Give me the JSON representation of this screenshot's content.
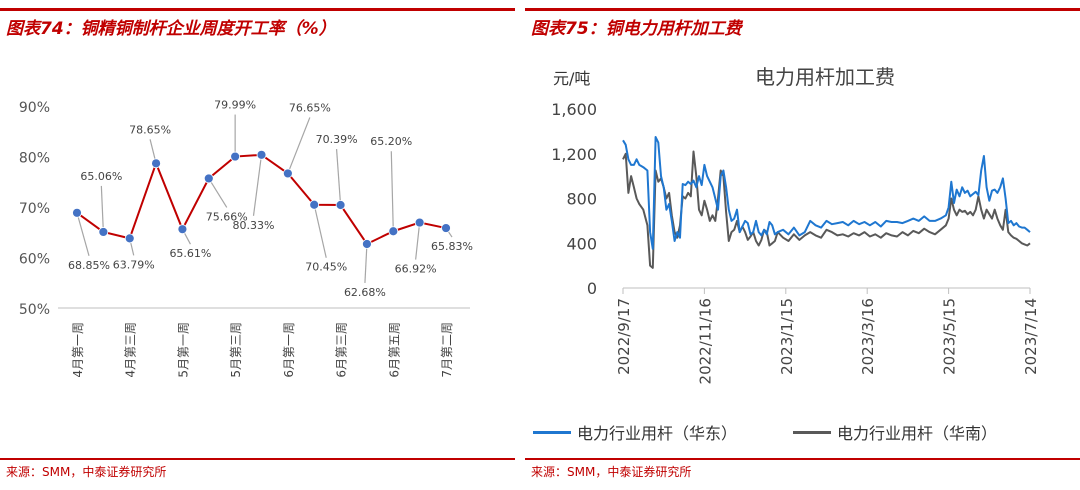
{
  "left_panel": {
    "figure_title": "图表74：铜精铜制杆企业周度开工率（%）",
    "source": "来源：SMM，中泰证券研究所"
  },
  "right_panel": {
    "figure_title": "图表75：铜电力用杆加工费",
    "source": "来源：SMM，中泰证券研究所"
  },
  "colors": {
    "accent": "#c00000",
    "line_red": "#c00000",
    "marker_blue": "#4472c4",
    "series_blue": "#1f77d0",
    "series_gray": "#595959"
  },
  "chart_data": [
    {
      "type": "line",
      "title": "",
      "ylim": [
        50,
        90
      ],
      "yticks": [
        "50%",
        "60%",
        "70%",
        "80%",
        "90%"
      ],
      "ytick_values": [
        50,
        60,
        70,
        80,
        90
      ],
      "x_labels": [
        "4月第一周",
        "4月第三周",
        "5月第一周",
        "5月第三周",
        "6月第一周",
        "6月第三周",
        "6月第五周",
        "7月第二周"
      ],
      "label_every": 2,
      "values": [
        68.85,
        65.06,
        63.79,
        78.65,
        65.61,
        75.66,
        79.99,
        80.33,
        76.65,
        70.45,
        70.39,
        62.68,
        65.2,
        66.92,
        65.83
      ],
      "data_labels": [
        "68.85%",
        "65.06%",
        "63.79%",
        "78.65%",
        "65.61%",
        "75.66%",
        "79.99%",
        "80.33%",
        "76.65%",
        "70.45%",
        "70.39%",
        "62.68%",
        "65.20%",
        "66.92%",
        "65.83%"
      ],
      "grid": false
    },
    {
      "type": "line",
      "title": "电力用杆加工费",
      "ylabel": "元/吨",
      "ylim": [
        0,
        1600
      ],
      "yticks": [
        "0",
        "400",
        "800",
        "1,200",
        "1,600"
      ],
      "ytick_values": [
        0,
        400,
        800,
        1200,
        1600
      ],
      "x_labels": [
        "2022/9/17",
        "2022/11/16",
        "2023/1/15",
        "2023/3/16",
        "2023/5/15",
        "2023/7/14"
      ],
      "x_positions": [
        0,
        60,
        120,
        180,
        240,
        300
      ],
      "legend_position": "bottom",
      "series": [
        {
          "name": "电力行业用杆（华东）",
          "x": [
            0,
            2,
            4,
            6,
            8,
            10,
            12,
            15,
            18,
            20,
            22,
            24,
            26,
            28,
            30,
            32,
            34,
            36,
            38,
            40,
            42,
            44,
            46,
            48,
            50,
            52,
            54,
            56,
            58,
            60,
            62,
            64,
            66,
            68,
            70,
            72,
            74,
            76,
            78,
            80,
            82,
            84,
            86,
            88,
            90,
            92,
            94,
            96,
            98,
            100,
            102,
            104,
            106,
            108,
            110,
            112,
            114,
            118,
            122,
            126,
            130,
            134,
            138,
            142,
            146,
            150,
            154,
            158,
            162,
            166,
            170,
            174,
            178,
            182,
            186,
            190,
            194,
            198,
            202,
            206,
            210,
            214,
            218,
            222,
            226,
            230,
            234,
            238,
            240,
            242,
            244,
            246,
            248,
            250,
            252,
            254,
            256,
            258,
            260,
            262,
            264,
            266,
            268,
            270,
            272,
            274,
            276,
            278,
            280,
            282,
            284,
            286,
            288,
            290,
            292,
            294,
            296,
            298,
            300
          ],
          "y": [
            1320,
            1280,
            1150,
            1100,
            1100,
            1150,
            1100,
            1080,
            1050,
            500,
            350,
            1350,
            1300,
            1000,
            900,
            700,
            750,
            600,
            420,
            500,
            450,
            930,
            920,
            950,
            930,
            960,
            900,
            1000,
            920,
            1100,
            1000,
            950,
            900,
            800,
            700,
            1000,
            1050,
            900,
            700,
            600,
            620,
            700,
            500,
            550,
            600,
            580,
            480,
            500,
            600,
            500,
            470,
            520,
            480,
            590,
            560,
            480,
            500,
            520,
            480,
            540,
            470,
            500,
            600,
            560,
            540,
            600,
            570,
            580,
            590,
            560,
            600,
            570,
            590,
            560,
            590,
            550,
            600,
            590,
            590,
            580,
            600,
            620,
            600,
            640,
            600,
            600,
            620,
            650,
            720,
            950,
            760,
            880,
            820,
            900,
            850,
            870,
            820,
            840,
            860,
            830,
            1050,
            1180,
            900,
            780,
            870,
            880,
            850,
            900,
            980,
            800,
            580,
            600,
            560,
            580,
            550,
            540,
            540,
            520,
            500
          ],
          "color": "#1f77d0"
        },
        {
          "name": "电力行业用杆（华南）",
          "x": [
            0,
            2,
            4,
            6,
            8,
            10,
            12,
            15,
            18,
            20,
            22,
            24,
            26,
            28,
            30,
            32,
            34,
            36,
            38,
            40,
            42,
            44,
            46,
            48,
            50,
            52,
            54,
            56,
            58,
            60,
            62,
            64,
            66,
            68,
            70,
            72,
            74,
            76,
            78,
            80,
            82,
            84,
            86,
            88,
            90,
            92,
            94,
            96,
            98,
            100,
            102,
            104,
            106,
            108,
            110,
            112,
            114,
            118,
            122,
            126,
            130,
            134,
            138,
            142,
            146,
            150,
            154,
            158,
            162,
            166,
            170,
            174,
            178,
            182,
            186,
            190,
            194,
            198,
            202,
            206,
            210,
            214,
            218,
            222,
            226,
            230,
            234,
            238,
            240,
            242,
            244,
            246,
            248,
            250,
            252,
            254,
            256,
            258,
            260,
            262,
            264,
            266,
            268,
            270,
            272,
            274,
            276,
            278,
            280,
            282,
            284,
            286,
            288,
            290,
            292,
            294,
            296,
            298,
            300
          ],
          "y": [
            1150,
            1200,
            850,
            1000,
            900,
            800,
            750,
            700,
            560,
            200,
            180,
            1050,
            950,
            980,
            900,
            800,
            850,
            650,
            500,
            450,
            560,
            820,
            800,
            850,
            820,
            1220,
            1000,
            700,
            650,
            780,
            700,
            600,
            650,
            600,
            800,
            1050,
            1000,
            680,
            420,
            500,
            520,
            600,
            500,
            550,
            500,
            430,
            460,
            500,
            420,
            380,
            430,
            520,
            500,
            380,
            400,
            420,
            500,
            450,
            420,
            480,
            430,
            470,
            500,
            470,
            450,
            520,
            500,
            470,
            480,
            460,
            490,
            470,
            500,
            460,
            480,
            450,
            490,
            470,
            460,
            500,
            470,
            510,
            490,
            530,
            500,
            480,
            520,
            560,
            620,
            800,
            700,
            650,
            700,
            680,
            690,
            660,
            680,
            650,
            700,
            820,
            700,
            620,
            700,
            660,
            620,
            700,
            620,
            560,
            520,
            700,
            500,
            470,
            450,
            440,
            420,
            400,
            390,
            380,
            400
          ],
          "color": "#595959"
        }
      ]
    }
  ]
}
